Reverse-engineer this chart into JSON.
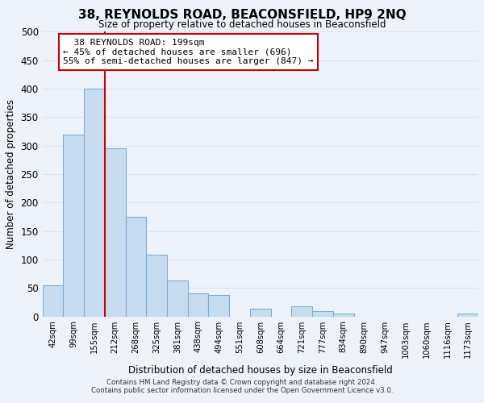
{
  "title": "38, REYNOLDS ROAD, BEACONSFIELD, HP9 2NQ",
  "subtitle": "Size of property relative to detached houses in Beaconsfield",
  "xlabel": "Distribution of detached houses by size in Beaconsfield",
  "ylabel": "Number of detached properties",
  "bar_labels": [
    "42sqm",
    "99sqm",
    "155sqm",
    "212sqm",
    "268sqm",
    "325sqm",
    "381sqm",
    "438sqm",
    "494sqm",
    "551sqm",
    "608sqm",
    "664sqm",
    "721sqm",
    "777sqm",
    "834sqm",
    "890sqm",
    "947sqm",
    "1003sqm",
    "1060sqm",
    "1116sqm",
    "1173sqm"
  ],
  "bar_heights": [
    55,
    320,
    400,
    295,
    175,
    108,
    63,
    40,
    37,
    0,
    13,
    0,
    18,
    10,
    5,
    0,
    0,
    0,
    0,
    0,
    5
  ],
  "bar_color": "#c8dcf0",
  "bar_edge_color": "#7badd4",
  "vline_color": "#cc0000",
  "ylim": [
    0,
    500
  ],
  "yticks": [
    0,
    50,
    100,
    150,
    200,
    250,
    300,
    350,
    400,
    450,
    500
  ],
  "annotation_title": "38 REYNOLDS ROAD: 199sqm",
  "annotation_line1": "← 45% of detached houses are smaller (696)",
  "annotation_line2": "55% of semi-detached houses are larger (847) →",
  "footer_line1": "Contains HM Land Registry data © Crown copyright and database right 2024.",
  "footer_line2": "Contains public sector information licensed under the Open Government Licence v3.0.",
  "background_color": "#eef3fb",
  "grid_color": "#d8e4f0"
}
